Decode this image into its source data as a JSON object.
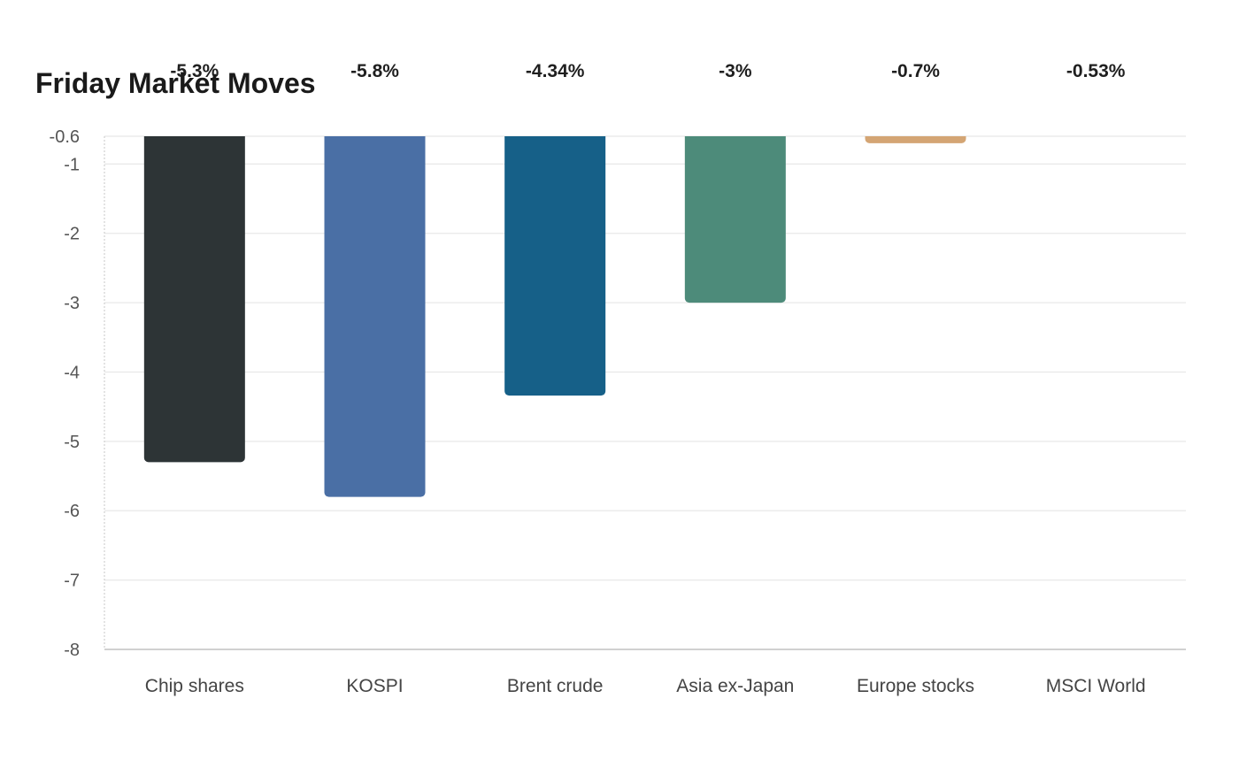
{
  "chart_data": {
    "type": "bar",
    "title": "Friday Market Moves",
    "xlabel": "",
    "ylabel": "",
    "categories": [
      "Chip shares",
      "KOSPI",
      "Brent crude",
      "Asia ex-Japan",
      "Europe stocks",
      "MSCI World"
    ],
    "values": [
      -5.3,
      -5.8,
      -4.34,
      -3,
      -0.7,
      -0.53
    ],
    "data_labels": [
      "-5.3%",
      "-5.8%",
      "-4.34%",
      "-3%",
      "-0.7%",
      "-0.53%"
    ],
    "colors": [
      "#2d3436",
      "#4a6fa5",
      "#166088",
      "#4d8b7a",
      "#d4a574",
      "#c9b89a"
    ],
    "ylim": [
      -8,
      -0.6
    ],
    "y_ticks": [
      -0.6,
      -1,
      -2,
      -3,
      -4,
      -5,
      -6,
      -7,
      -8
    ],
    "y_tick_labels": [
      "-0.6",
      "-1",
      "-2",
      "-3",
      "-4",
      "-5",
      "-6",
      "-7",
      "-8"
    ],
    "grid": true,
    "legend": "none"
  }
}
